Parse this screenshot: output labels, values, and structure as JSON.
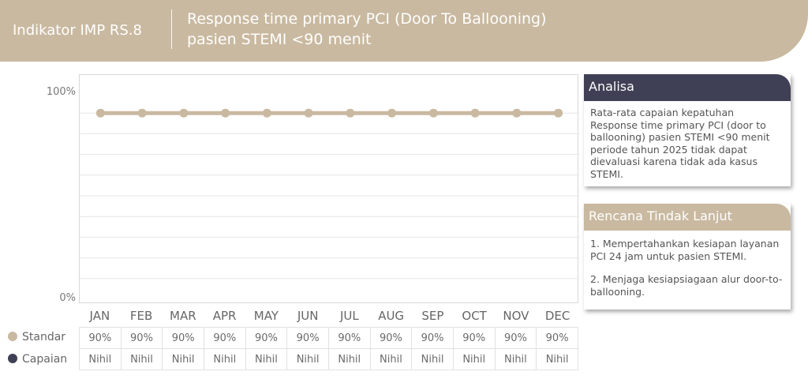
{
  "header": {
    "indicator": "Indikator IMP RS.8",
    "title_line1": "Response time primary PCI (Door To Ballooning)",
    "title_line2": "pasien STEMI <90 menit"
  },
  "colors": {
    "header_bg": "#c9b9a0",
    "standar": "#c9b9a0",
    "capaian": "#3f3f55",
    "analisa_tab": "#3f3f55",
    "rtl_tab": "#c9b9a0"
  },
  "chart_data": {
    "type": "line",
    "categories": [
      "JAN",
      "FEB",
      "MAR",
      "APR",
      "MAY",
      "JUN",
      "JUL",
      "AUG",
      "SEP",
      "OCT",
      "NOV",
      "DEC"
    ],
    "series": [
      {
        "name": "Standar",
        "values": [
          90,
          90,
          90,
          90,
          90,
          90,
          90,
          90,
          90,
          90,
          90,
          90
        ]
      },
      {
        "name": "Capaian",
        "values": [
          null,
          null,
          null,
          null,
          null,
          null,
          null,
          null,
          null,
          null,
          null,
          null
        ]
      }
    ],
    "ylim": [
      0,
      100
    ],
    "yticks": [
      "0%",
      "100%"
    ],
    "grid": true
  },
  "table": {
    "rows": [
      {
        "label": "Standar",
        "cells": [
          "90%",
          "90%",
          "90%",
          "90%",
          "90%",
          "90%",
          "90%",
          "90%",
          "90%",
          "90%",
          "90%",
          "90%"
        ]
      },
      {
        "label": "Capaian",
        "cells": [
          "Nihil",
          "Nihil",
          "Nihil",
          "Nihil",
          "Nihil",
          "Nihil",
          "Nihil",
          "Nihil",
          "Nihil",
          "Nihil",
          "Nihil",
          "Nihil"
        ]
      }
    ]
  },
  "analisa": {
    "title": "Analisa",
    "text": "Rata-rata capaian kepatuhan Response time primary PCI (door to ballooning) pasien STEMI <90 menit periode tahun 2025 tidak dapat dievaluasi karena tidak ada kasus STEMI."
  },
  "rtl": {
    "title": "Rencana Tindak Lanjut",
    "item1": "1. Mempertahankan kesiapan layanan PCI 24 jam untuk pasien STEMI.",
    "item2": "2. Menjaga kesiapsiagaan alur door-to-ballooning."
  }
}
